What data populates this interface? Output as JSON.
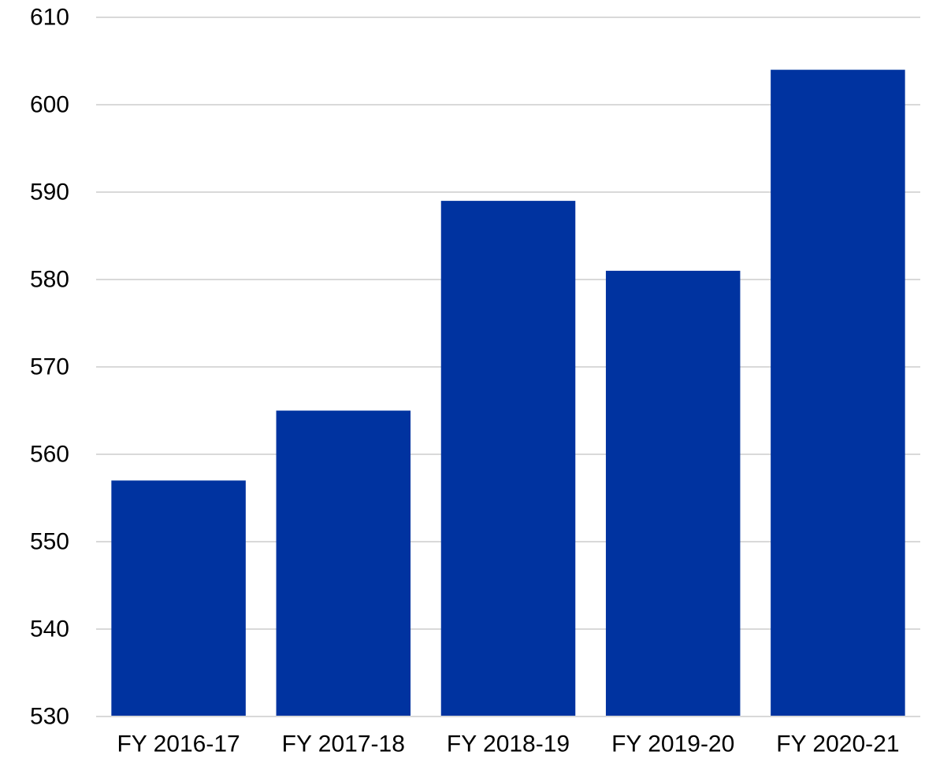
{
  "chart_data": {
    "type": "bar",
    "categories": [
      "FY 2016-17",
      "FY 2017-18",
      "FY 2018-19",
      "FY 2019-20",
      "FY 2020-21"
    ],
    "values": [
      557,
      565,
      589,
      581,
      604
    ],
    "title": "",
    "xlabel": "",
    "ylabel": "",
    "ylim": [
      530,
      610
    ],
    "yticks": [
      530,
      540,
      550,
      560,
      570,
      580,
      590,
      600,
      610
    ],
    "grid": true,
    "legend": "none",
    "bar_color": "#0033a0"
  }
}
